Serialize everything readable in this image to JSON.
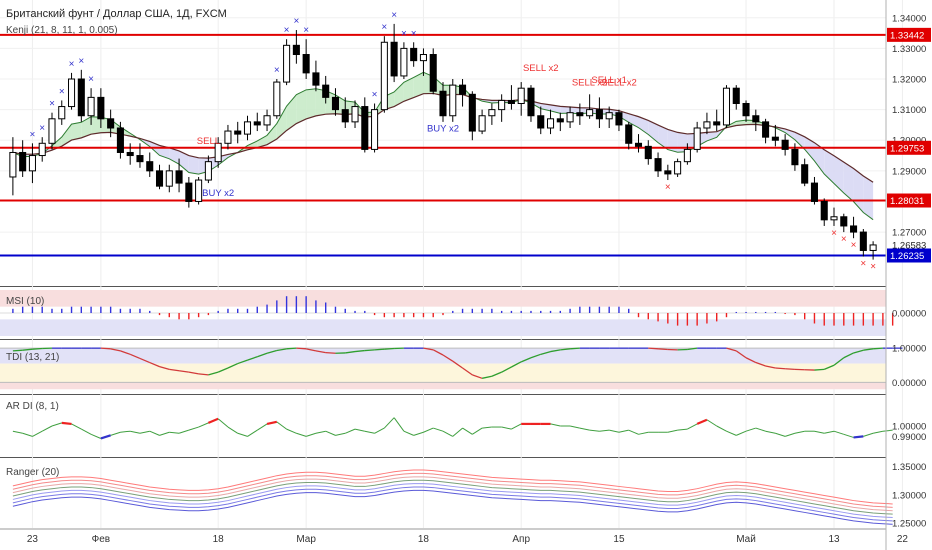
{
  "colors": {
    "up": "#000000",
    "down": "#000000",
    "kenji_fast": "#2e7d32",
    "kenji_slow": "#5d2b2b",
    "cloud_bull": "#c8eac8",
    "cloud_bear": "#d8d8f4",
    "hline": "#e00000",
    "blue_line": "#0000cc",
    "msi_pos": "#3333dd",
    "msi_neg": "#ee2222",
    "marker_blue": "#3333cc",
    "marker_red": "#ee3333"
  },
  "chart_data": [
    {
      "type": "candlestick",
      "title": "Британский фунт / Доллар США, 1Д, FXCM",
      "indicator_label": "Kenji (21, 8, 11, 1, 0.005)",
      "ylim": [
        1.255,
        1.3445
      ],
      "y_ticks": [
        "1.34000",
        "1.33000",
        "1.32000",
        "1.31000",
        "1.30000",
        "1.29000",
        "1.27000"
      ],
      "x_labels": [
        {
          "label": "23",
          "i": 2
        },
        {
          "label": "Фев",
          "i": 9
        },
        {
          "label": "18",
          "i": 21
        },
        {
          "label": "Мар",
          "i": 30
        },
        {
          "label": "18",
          "i": 42
        },
        {
          "label": "Апр",
          "i": 52
        },
        {
          "label": "15",
          "i": 62
        },
        {
          "label": "Май",
          "i": 75
        },
        {
          "label": "13",
          "i": 84
        },
        {
          "label": "22",
          "i": 91
        }
      ],
      "horizontal_lines": [
        {
          "value": 1.33442,
          "label": "1.33442",
          "color": "red"
        },
        {
          "value": 1.29753,
          "label": "1.29753",
          "color": "red"
        },
        {
          "value": 1.28031,
          "label": "1.28031",
          "color": "red"
        },
        {
          "value": 1.26235,
          "label": "1.26235",
          "color": "blue"
        }
      ],
      "last_price_label": "1.26583",
      "candles": [
        {
          "o": 1.288,
          "h": 1.301,
          "l": 1.282,
          "c": 1.296
        },
        {
          "o": 1.296,
          "h": 1.3,
          "l": 1.288,
          "c": 1.29
        },
        {
          "o": 1.29,
          "h": 1.299,
          "l": 1.286,
          "c": 1.295
        },
        {
          "o": 1.295,
          "h": 1.301,
          "l": 1.293,
          "c": 1.299
        },
        {
          "o": 1.299,
          "h": 1.309,
          "l": 1.297,
          "c": 1.307
        },
        {
          "o": 1.307,
          "h": 1.313,
          "l": 1.305,
          "c": 1.311
        },
        {
          "o": 1.311,
          "h": 1.322,
          "l": 1.31,
          "c": 1.32
        },
        {
          "o": 1.32,
          "h": 1.323,
          "l": 1.306,
          "c": 1.308
        },
        {
          "o": 1.308,
          "h": 1.317,
          "l": 1.305,
          "c": 1.314
        },
        {
          "o": 1.314,
          "h": 1.317,
          "l": 1.304,
          "c": 1.307
        },
        {
          "o": 1.307,
          "h": 1.31,
          "l": 1.301,
          "c": 1.304
        },
        {
          "o": 1.304,
          "h": 1.306,
          "l": 1.294,
          "c": 1.296
        },
        {
          "o": 1.296,
          "h": 1.299,
          "l": 1.292,
          "c": 1.295
        },
        {
          "o": 1.295,
          "h": 1.299,
          "l": 1.291,
          "c": 1.293
        },
        {
          "o": 1.293,
          "h": 1.296,
          "l": 1.288,
          "c": 1.29
        },
        {
          "o": 1.29,
          "h": 1.292,
          "l": 1.284,
          "c": 1.285
        },
        {
          "o": 1.285,
          "h": 1.292,
          "l": 1.283,
          "c": 1.29
        },
        {
          "o": 1.29,
          "h": 1.294,
          "l": 1.283,
          "c": 1.286
        },
        {
          "o": 1.286,
          "h": 1.288,
          "l": 1.278,
          "c": 1.28
        },
        {
          "o": 1.28,
          "h": 1.288,
          "l": 1.279,
          "c": 1.287
        },
        {
          "o": 1.287,
          "h": 1.295,
          "l": 1.286,
          "c": 1.293
        },
        {
          "o": 1.293,
          "h": 1.301,
          "l": 1.291,
          "c": 1.299
        },
        {
          "o": 1.299,
          "h": 1.305,
          "l": 1.297,
          "c": 1.303
        },
        {
          "o": 1.303,
          "h": 1.306,
          "l": 1.299,
          "c": 1.302
        },
        {
          "o": 1.302,
          "h": 1.308,
          "l": 1.3,
          "c": 1.306
        },
        {
          "o": 1.306,
          "h": 1.309,
          "l": 1.303,
          "c": 1.305
        },
        {
          "o": 1.305,
          "h": 1.31,
          "l": 1.303,
          "c": 1.308
        },
        {
          "o": 1.308,
          "h": 1.32,
          "l": 1.307,
          "c": 1.319
        },
        {
          "o": 1.319,
          "h": 1.333,
          "l": 1.318,
          "c": 1.331
        },
        {
          "o": 1.331,
          "h": 1.336,
          "l": 1.325,
          "c": 1.328
        },
        {
          "o": 1.328,
          "h": 1.333,
          "l": 1.32,
          "c": 1.322
        },
        {
          "o": 1.322,
          "h": 1.326,
          "l": 1.316,
          "c": 1.318
        },
        {
          "o": 1.318,
          "h": 1.321,
          "l": 1.312,
          "c": 1.314
        },
        {
          "o": 1.314,
          "h": 1.317,
          "l": 1.308,
          "c": 1.31
        },
        {
          "o": 1.31,
          "h": 1.314,
          "l": 1.304,
          "c": 1.306
        },
        {
          "o": 1.306,
          "h": 1.313,
          "l": 1.304,
          "c": 1.311
        },
        {
          "o": 1.311,
          "h": 1.314,
          "l": 1.296,
          "c": 1.297
        },
        {
          "o": 1.297,
          "h": 1.312,
          "l": 1.296,
          "c": 1.31
        },
        {
          "o": 1.31,
          "h": 1.334,
          "l": 1.309,
          "c": 1.332
        },
        {
          "o": 1.332,
          "h": 1.338,
          "l": 1.319,
          "c": 1.321
        },
        {
          "o": 1.321,
          "h": 1.332,
          "l": 1.32,
          "c": 1.33
        },
        {
          "o": 1.33,
          "h": 1.332,
          "l": 1.324,
          "c": 1.326
        },
        {
          "o": 1.326,
          "h": 1.33,
          "l": 1.321,
          "c": 1.328
        },
        {
          "o": 1.328,
          "h": 1.33,
          "l": 1.315,
          "c": 1.316
        },
        {
          "o": 1.316,
          "h": 1.319,
          "l": 1.306,
          "c": 1.308
        },
        {
          "o": 1.308,
          "h": 1.32,
          "l": 1.306,
          "c": 1.318
        },
        {
          "o": 1.318,
          "h": 1.32,
          "l": 1.311,
          "c": 1.315
        },
        {
          "o": 1.315,
          "h": 1.316,
          "l": 1.3,
          "c": 1.303
        },
        {
          "o": 1.303,
          "h": 1.31,
          "l": 1.302,
          "c": 1.308
        },
        {
          "o": 1.308,
          "h": 1.312,
          "l": 1.305,
          "c": 1.31
        },
        {
          "o": 1.31,
          "h": 1.315,
          "l": 1.306,
          "c": 1.313
        },
        {
          "o": 1.313,
          "h": 1.318,
          "l": 1.31,
          "c": 1.312
        },
        {
          "o": 1.312,
          "h": 1.319,
          "l": 1.308,
          "c": 1.317
        },
        {
          "o": 1.317,
          "h": 1.318,
          "l": 1.306,
          "c": 1.308
        },
        {
          "o": 1.308,
          "h": 1.311,
          "l": 1.302,
          "c": 1.304
        },
        {
          "o": 1.304,
          "h": 1.31,
          "l": 1.302,
          "c": 1.307
        },
        {
          "o": 1.307,
          "h": 1.309,
          "l": 1.303,
          "c": 1.306
        },
        {
          "o": 1.306,
          "h": 1.311,
          "l": 1.304,
          "c": 1.309
        },
        {
          "o": 1.309,
          "h": 1.312,
          "l": 1.305,
          "c": 1.308
        },
        {
          "o": 1.308,
          "h": 1.315,
          "l": 1.307,
          "c": 1.31
        },
        {
          "o": 1.31,
          "h": 1.314,
          "l": 1.304,
          "c": 1.307
        },
        {
          "o": 1.307,
          "h": 1.311,
          "l": 1.304,
          "c": 1.309
        },
        {
          "o": 1.309,
          "h": 1.31,
          "l": 1.303,
          "c": 1.305
        },
        {
          "o": 1.305,
          "h": 1.306,
          "l": 1.297,
          "c": 1.299
        },
        {
          "o": 1.299,
          "h": 1.302,
          "l": 1.296,
          "c": 1.298
        },
        {
          "o": 1.298,
          "h": 1.3,
          "l": 1.292,
          "c": 1.294
        },
        {
          "o": 1.294,
          "h": 1.296,
          "l": 1.288,
          "c": 1.29
        },
        {
          "o": 1.29,
          "h": 1.292,
          "l": 1.287,
          "c": 1.289
        },
        {
          "o": 1.289,
          "h": 1.294,
          "l": 1.288,
          "c": 1.293
        },
        {
          "o": 1.293,
          "h": 1.299,
          "l": 1.292,
          "c": 1.297
        },
        {
          "o": 1.297,
          "h": 1.306,
          "l": 1.296,
          "c": 1.304
        },
        {
          "o": 1.304,
          "h": 1.309,
          "l": 1.302,
          "c": 1.306
        },
        {
          "o": 1.306,
          "h": 1.31,
          "l": 1.303,
          "c": 1.305
        },
        {
          "o": 1.305,
          "h": 1.318,
          "l": 1.304,
          "c": 1.317
        },
        {
          "o": 1.317,
          "h": 1.318,
          "l": 1.31,
          "c": 1.312
        },
        {
          "o": 1.312,
          "h": 1.313,
          "l": 1.306,
          "c": 1.308
        },
        {
          "o": 1.308,
          "h": 1.31,
          "l": 1.303,
          "c": 1.306
        },
        {
          "o": 1.306,
          "h": 1.307,
          "l": 1.299,
          "c": 1.301
        },
        {
          "o": 1.301,
          "h": 1.305,
          "l": 1.298,
          "c": 1.3
        },
        {
          "o": 1.3,
          "h": 1.302,
          "l": 1.295,
          "c": 1.297
        },
        {
          "o": 1.297,
          "h": 1.299,
          "l": 1.29,
          "c": 1.292
        },
        {
          "o": 1.292,
          "h": 1.294,
          "l": 1.285,
          "c": 1.286
        },
        {
          "o": 1.286,
          "h": 1.288,
          "l": 1.279,
          "c": 1.28
        },
        {
          "o": 1.28,
          "h": 1.281,
          "l": 1.272,
          "c": 1.274
        },
        {
          "o": 1.274,
          "h": 1.278,
          "l": 1.272,
          "c": 1.275
        },
        {
          "o": 1.275,
          "h": 1.276,
          "l": 1.27,
          "c": 1.272
        },
        {
          "o": 1.272,
          "h": 1.275,
          "l": 1.268,
          "c": 1.27
        },
        {
          "o": 1.27,
          "h": 1.271,
          "l": 1.262,
          "c": 1.264
        },
        {
          "o": 1.264,
          "h": 1.267,
          "l": 1.261,
          "c": 1.2658
        }
      ],
      "signals": [
        {
          "text": "SELL",
          "i": 20,
          "price": 1.2988,
          "color": "red"
        },
        {
          "text": "BUY x2",
          "i": 21,
          "price": 1.2818,
          "color": "blue"
        },
        {
          "text": "BUY x2",
          "i": 44,
          "price": 1.3029,
          "color": "blue"
        },
        {
          "text": "SELL x2",
          "i": 54,
          "price": 1.3226,
          "color": "red"
        },
        {
          "text": "SELL x2",
          "i": 59,
          "price": 1.3178,
          "color": "red"
        },
        {
          "text": "SELL x1",
          "i": 61,
          "price": 1.3187,
          "color": "red"
        },
        {
          "text": "SELL x2",
          "i": 62,
          "price": 1.3178,
          "color": "red"
        }
      ]
    },
    {
      "type": "histogram",
      "label": "MSI (10)",
      "ylim": [
        -1,
        1
      ],
      "y_ticks": [
        "0.00000"
      ],
      "values": [
        0.2,
        0.3,
        0.3,
        0.3,
        0.2,
        0.2,
        0.3,
        0.3,
        0.3,
        0.3,
        0.3,
        0.2,
        0.2,
        0.2,
        0.1,
        -0.1,
        -0.2,
        -0.3,
        -0.3,
        -0.2,
        -0.1,
        0.1,
        0.2,
        0.2,
        0.2,
        0.3,
        0.4,
        0.6,
        0.8,
        0.8,
        0.8,
        0.6,
        0.5,
        0.3,
        0.2,
        0.1,
        0.1,
        -0.1,
        -0.2,
        -0.2,
        -0.2,
        -0.2,
        -0.2,
        -0.2,
        -0.1,
        0.1,
        0.2,
        0.2,
        0.2,
        0.2,
        0.1,
        0.1,
        0.1,
        0.1,
        0.1,
        0.1,
        0.1,
        0.2,
        0.3,
        0.3,
        0.3,
        0.3,
        0.3,
        0.2,
        -0.2,
        -0.3,
        -0.4,
        -0.5,
        -0.6,
        -0.6,
        -0.6,
        -0.5,
        -0.4,
        -0.2,
        0.05,
        0.05,
        0.05,
        0.05,
        0.05,
        -0.05,
        -0.1,
        -0.3,
        -0.5,
        -0.6,
        -0.6,
        -0.6,
        -0.6,
        -0.6,
        -0.6,
        -0.6,
        -0.6
      ]
    },
    {
      "type": "line",
      "label": "TDI (13, 21)",
      "ylim": [
        -0.25,
        1.15
      ],
      "y_ticks": [
        "1.00000",
        "0.00000"
      ],
      "values": [
        0.92,
        0.94,
        0.97,
        0.99,
        1.0,
        1.0,
        1.0,
        1.0,
        1.0,
        1.0,
        0.98,
        0.92,
        0.82,
        0.7,
        0.58,
        0.46,
        0.38,
        0.34,
        0.3,
        0.25,
        0.22,
        0.3,
        0.42,
        0.55,
        0.65,
        0.75,
        0.85,
        0.93,
        0.98,
        1.0,
        0.98,
        0.92,
        0.87,
        0.85,
        0.86,
        0.9,
        0.93,
        0.95,
        0.97,
        0.99,
        1.0,
        1.0,
        1.0,
        0.95,
        0.8,
        0.62,
        0.42,
        0.22,
        0.12,
        0.18,
        0.3,
        0.45,
        0.6,
        0.72,
        0.82,
        0.9,
        0.95,
        0.98,
        1.0,
        1.0,
        1.0,
        1.0,
        1.0,
        1.0,
        1.0,
        1.0,
        0.98,
        0.96,
        0.95,
        0.96,
        1.0,
        1.0,
        1.0,
        1.0,
        0.92,
        0.72,
        0.58,
        0.48,
        0.42,
        0.4,
        0.38,
        0.37,
        0.36,
        0.38,
        0.5,
        0.72,
        0.86,
        0.94,
        0.98,
        1.0,
        1.0,
        1.0
      ]
    },
    {
      "type": "line",
      "label": "AR DI (8, 1)",
      "ylim": [
        0.975,
        1.025
      ],
      "y_ticks": [
        "1.00000",
        "0.99000"
      ],
      "values": [
        0.995,
        0.993,
        0.99,
        0.995,
        1.0,
        1.003,
        1.002,
        0.997,
        0.992,
        0.988,
        0.991,
        0.994,
        0.995,
        0.993,
        0.995,
        0.991,
        0.994,
        0.993,
        0.996,
        0.999,
        1.003,
        1.007,
        0.999,
        0.993,
        0.99,
        0.996,
        1.002,
        1.004,
        0.997,
        0.993,
        0.99,
        0.993,
        0.995,
        0.991,
        0.993,
        0.997,
        0.995,
        0.993,
        0.998,
        1.008,
        0.995,
        0.991,
        0.994,
        0.998,
        0.995,
        0.99,
        0.998,
        0.992,
        0.998,
        0.999,
        0.999,
        0.997,
        1.002,
        1.002,
        1.002,
        1.002,
        1.0,
        1.0,
        0.998,
        0.996,
        0.995,
        0.996,
        0.994,
        0.996,
        0.992,
        0.994,
        0.994,
        0.994,
        0.996,
        0.997,
        1.002,
        1.006,
        1.0,
        0.995,
        0.991,
        0.995,
        0.998,
        0.995,
        0.993,
        0.99,
        0.993,
        0.995,
        0.995,
        0.993,
        0.995,
        0.992,
        0.989,
        0.99,
        0.993,
        0.995,
        0.996
      ]
    },
    {
      "type": "line",
      "label": "Ranger (20)",
      "ylim": [
        1.245,
        1.36
      ],
      "y_ticks": [
        "1.35000",
        "1.30000",
        "1.25000"
      ],
      "base": [
        1.298,
        1.302,
        1.306,
        1.309,
        1.311,
        1.313,
        1.314,
        1.314,
        1.313,
        1.311,
        1.308,
        1.305,
        1.302,
        1.299,
        1.296,
        1.294,
        1.292,
        1.291,
        1.29,
        1.29,
        1.291,
        1.293,
        1.296,
        1.3,
        1.304,
        1.308,
        1.312,
        1.316,
        1.319,
        1.321,
        1.322,
        1.322,
        1.321,
        1.319,
        1.317,
        1.315,
        1.315,
        1.317,
        1.32,
        1.323,
        1.325,
        1.326,
        1.326,
        1.325,
        1.323,
        1.321,
        1.319,
        1.317,
        1.315,
        1.313,
        1.312,
        1.311,
        1.31,
        1.309,
        1.308,
        1.308,
        1.307,
        1.306,
        1.305,
        1.303,
        1.301,
        1.299,
        1.297,
        1.295,
        1.293,
        1.291,
        1.289,
        1.288,
        1.288,
        1.29,
        1.293,
        1.297,
        1.301,
        1.304,
        1.305,
        1.304,
        1.302,
        1.299,
        1.296,
        1.293,
        1.29,
        1.287,
        1.284,
        1.281,
        1.278,
        1.275,
        1.272,
        1.27,
        1.268,
        1.267,
        1.266
      ],
      "band_offsets": [
        0.018,
        0.012,
        0.006,
        0.0,
        -0.006,
        -0.012,
        -0.018
      ]
    }
  ]
}
